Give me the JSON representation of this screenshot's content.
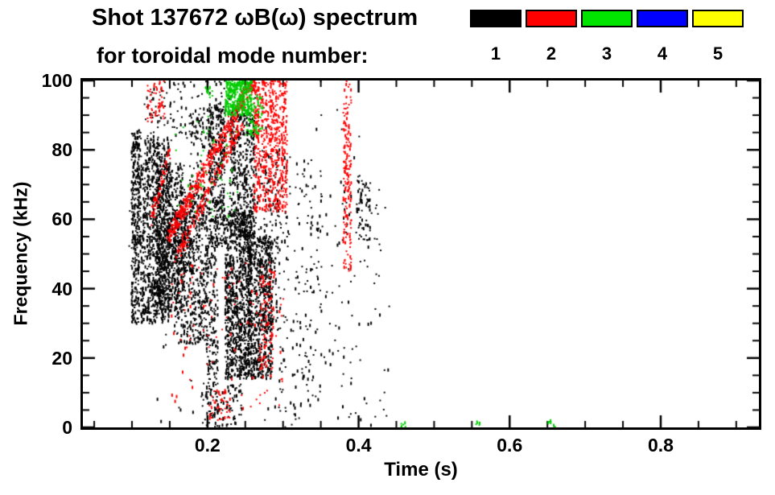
{
  "header": {
    "title": "Shot 137672 ωB(ω) spectrum",
    "subtitle": "for toroidal mode number:",
    "legend": [
      {
        "label": "1",
        "color": "#000000"
      },
      {
        "label": "2",
        "color": "#ff0000"
      },
      {
        "label": "3",
        "color": "#00e400"
      },
      {
        "label": "4",
        "color": "#0000ff"
      },
      {
        "label": "5",
        "color": "#ffff00"
      }
    ]
  },
  "chart_data": {
    "type": "scatter",
    "title": "Shot 137672 ωB(ω) spectrum for toroidal mode number: 1 2 3 4 5",
    "xlabel": "Time (s)",
    "ylabel": "Frequency (kHz)",
    "xlim": [
      0.035,
      0.93
    ],
    "ylim": [
      0,
      100
    ],
    "x_major_ticks": [
      0.2,
      0.4,
      0.6,
      0.8
    ],
    "x_minor_step": 0.05,
    "y_major_ticks": [
      0,
      20,
      40,
      60,
      80,
      100
    ],
    "y_minor_step": 5,
    "grid": false,
    "legend_position": "top-right",
    "seed": 1337,
    "series": [
      {
        "name": "n=1",
        "color": "#000000",
        "clusters": [
          {
            "type": "blob",
            "x": [
              0.098,
              0.112
            ],
            "y": [
              52,
              86
            ],
            "n": 240,
            "cols": 2
          },
          {
            "type": "blob",
            "x": [
              0.098,
              0.112
            ],
            "y": [
              30,
              55
            ],
            "n": 140
          },
          {
            "type": "blob",
            "x": [
              0.112,
              0.15
            ],
            "y": [
              30,
              83
            ],
            "n": 820,
            "cols": 6
          },
          {
            "type": "blob",
            "x": [
              0.13,
              0.17
            ],
            "y": [
              33,
              76
            ],
            "n": 450,
            "cols": 5
          },
          {
            "type": "blob",
            "x": [
              0.155,
              0.2
            ],
            "y": [
              24,
              68
            ],
            "n": 480,
            "cols": 6
          },
          {
            "type": "blob",
            "x": [
              0.13,
              0.185
            ],
            "y": [
              44,
              62
            ],
            "n": 280
          },
          {
            "type": "blob",
            "x": [
              0.197,
              0.213
            ],
            "y": [
              3,
              55
            ],
            "n": 190,
            "cols": 2
          },
          {
            "type": "blob",
            "x": [
              0.2,
              0.222
            ],
            "y": [
              52,
              93
            ],
            "n": 360,
            "cols": 3
          },
          {
            "type": "blob",
            "x": [
              0.222,
              0.258
            ],
            "y": [
              14,
              62
            ],
            "n": 950,
            "cols": 6
          },
          {
            "type": "blob",
            "x": [
              0.252,
              0.285
            ],
            "y": [
              14,
              55
            ],
            "n": 600,
            "cols": 5
          },
          {
            "type": "blob",
            "x": [
              0.228,
              0.262
            ],
            "y": [
              55,
              92
            ],
            "n": 430,
            "cols": 4
          },
          {
            "type": "blob",
            "x": [
              0.262,
              0.295
            ],
            "y": [
              28,
              80
            ],
            "n": 200,
            "cols": 4
          },
          {
            "type": "blob",
            "x": [
              0.285,
              0.35
            ],
            "y": [
              5,
              78
            ],
            "n": 150
          },
          {
            "type": "blob",
            "x": [
              0.3,
              0.44
            ],
            "y": [
              0,
              70
            ],
            "n": 120
          },
          {
            "type": "blob",
            "x": [
              0.115,
              0.235
            ],
            "y": [
              83,
              100
            ],
            "n": 130
          },
          {
            "type": "blob",
            "x": [
              0.395,
              0.415
            ],
            "y": [
              54,
              73
            ],
            "n": 70,
            "cols": 2
          },
          {
            "type": "blob",
            "x": [
              0.19,
              0.245
            ],
            "y": [
              0,
              13
            ],
            "n": 90
          },
          {
            "type": "blob",
            "x": [
              0.09,
              0.44
            ],
            "y": [
              0,
              100
            ],
            "n": 110
          },
          {
            "type": "blob",
            "x": [
              0.175,
              0.195
            ],
            "y": [
              60,
              92
            ],
            "n": 90
          }
        ]
      },
      {
        "name": "n=2",
        "color": "#ff0000",
        "clusters": [
          {
            "type": "band",
            "x": [
              0.148,
              0.262
            ],
            "y": [
              55,
              101
            ],
            "w": 2.5,
            "n": 430
          },
          {
            "type": "band",
            "x": [
              0.158,
              0.245
            ],
            "y": [
              49,
              88
            ],
            "w": 1.8,
            "n": 170
          },
          {
            "type": "blob",
            "x": [
              0.26,
              0.305
            ],
            "y": [
              62,
              100
            ],
            "n": 580,
            "cols": 5
          },
          {
            "type": "blob",
            "x": [
              0.378,
              0.39
            ],
            "y": [
              45,
              100
            ],
            "n": 170,
            "cols": 1
          },
          {
            "type": "blob",
            "x": [
              0.15,
              0.3
            ],
            "y": [
              5,
              48
            ],
            "n": 110
          },
          {
            "type": "blob",
            "x": [
              0.268,
              0.288
            ],
            "y": [
              14,
              46
            ],
            "n": 90,
            "cols": 2
          },
          {
            "type": "blob",
            "x": [
              0.118,
              0.142
            ],
            "y": [
              88,
              100
            ],
            "n": 50
          },
          {
            "type": "blob",
            "x": [
              0.2,
              0.23
            ],
            "y": [
              2,
              11
            ],
            "n": 40
          },
          {
            "type": "band",
            "x": [
              0.125,
              0.148
            ],
            "y": [
              60,
              80
            ],
            "w": 2,
            "n": 60
          }
        ]
      },
      {
        "name": "n=3",
        "color": "#00cc00",
        "clusters": [
          {
            "type": "blob",
            "x": [
              0.222,
              0.258
            ],
            "y": [
              90,
              100
            ],
            "n": 320,
            "cols": 4
          },
          {
            "type": "blob",
            "x": [
              0.25,
              0.272
            ],
            "y": [
              84,
              96
            ],
            "n": 60
          },
          {
            "type": "blob",
            "x": [
              0.155,
              0.24
            ],
            "y": [
              58,
              90
            ],
            "n": 45
          },
          {
            "type": "blob",
            "x": [
              0.196,
              0.206
            ],
            "y": [
              95,
              100
            ],
            "n": 14
          },
          {
            "type": "blob",
            "x": [
              0.455,
              0.462
            ],
            "y": [
              0,
              2
            ],
            "n": 6
          },
          {
            "type": "blob",
            "x": [
              0.553,
              0.56
            ],
            "y": [
              0,
              2
            ],
            "n": 5
          },
          {
            "type": "blob",
            "x": [
              0.65,
              0.662
            ],
            "y": [
              0,
              2
            ],
            "n": 6
          }
        ]
      },
      {
        "name": "n=4",
        "color": "#0000ff",
        "clusters": []
      },
      {
        "name": "n=5",
        "color": "#ffff00",
        "clusters": []
      }
    ]
  }
}
